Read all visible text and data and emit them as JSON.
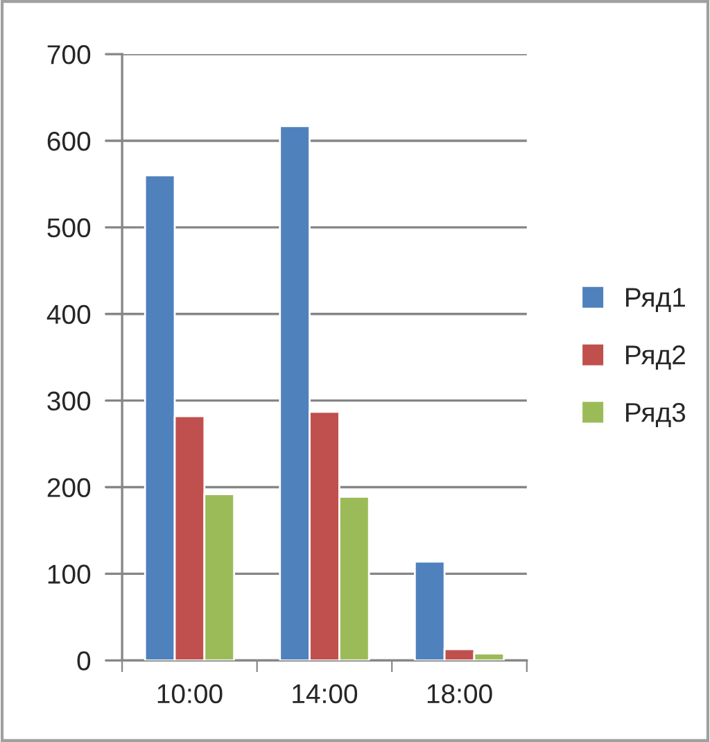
{
  "chart_data": {
    "type": "bar",
    "categories": [
      "10:00",
      "14:00",
      "18:00"
    ],
    "series": [
      {
        "name": "Ряд1",
        "color": "#4f81bd",
        "values": [
          560,
          617,
          114
        ]
      },
      {
        "name": "Ряд2",
        "color": "#c0504d",
        "values": [
          282,
          287,
          13
        ]
      },
      {
        "name": "Ряд3",
        "color": "#9bbb59",
        "values": [
          192,
          189,
          8
        ]
      }
    ],
    "ylim": [
      0,
      700
    ],
    "yticks": [
      0,
      100,
      200,
      300,
      400,
      500,
      600,
      700
    ],
    "grid": "y",
    "legend": "right"
  }
}
